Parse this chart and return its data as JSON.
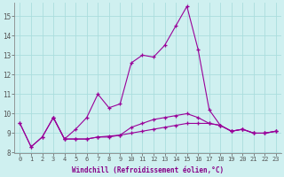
{
  "line1_x": [
    0,
    1,
    2,
    3,
    4,
    5,
    6,
    7,
    8,
    9,
    10,
    11,
    12,
    13,
    14,
    15,
    16,
    17,
    18,
    19,
    20,
    21,
    22,
    23
  ],
  "line1_y": [
    9.5,
    8.3,
    8.8,
    9.8,
    8.7,
    9.2,
    9.8,
    11.0,
    10.3,
    10.5,
    12.6,
    13.0,
    12.9,
    13.5,
    14.5,
    15.5,
    13.3,
    10.2,
    9.4,
    9.1,
    9.2,
    9.0,
    9.0,
    9.1
  ],
  "line2_x": [
    0,
    1,
    2,
    3,
    4,
    5,
    6,
    7,
    8,
    9,
    10,
    11,
    12,
    13,
    14,
    15,
    16,
    17,
    18,
    19,
    20,
    21,
    22,
    23
  ],
  "line2_y": [
    9.5,
    8.3,
    8.8,
    9.8,
    8.7,
    8.7,
    8.7,
    8.8,
    8.8,
    8.9,
    9.0,
    9.1,
    9.2,
    9.3,
    9.4,
    9.5,
    9.5,
    9.5,
    9.4,
    9.1,
    9.2,
    9.0,
    9.0,
    9.1
  ],
  "line3_x": [
    3,
    4,
    5,
    6,
    7,
    8,
    9,
    10,
    11,
    12,
    13,
    14,
    15,
    16,
    17,
    18,
    19,
    20,
    21,
    22,
    23
  ],
  "line3_y": [
    9.8,
    8.7,
    8.7,
    8.7,
    8.8,
    8.85,
    8.9,
    9.3,
    9.5,
    9.7,
    9.8,
    9.9,
    10.0,
    9.8,
    9.5,
    9.4,
    9.1,
    9.2,
    9.0,
    9.0,
    9.1
  ],
  "line_color": "#990099",
  "bg_color": "#cff0f0",
  "grid_color": "#aadddd",
  "xlabel": "Windchill (Refroidissement éolien,°C)",
  "xlim": [
    -0.5,
    23.5
  ],
  "ylim": [
    8.0,
    15.7
  ],
  "yticks": [
    8,
    9,
    10,
    11,
    12,
    13,
    14,
    15
  ],
  "xticks": [
    0,
    1,
    2,
    3,
    4,
    5,
    6,
    7,
    8,
    9,
    10,
    11,
    12,
    13,
    14,
    15,
    16,
    17,
    18,
    19,
    20,
    21,
    22,
    23
  ]
}
